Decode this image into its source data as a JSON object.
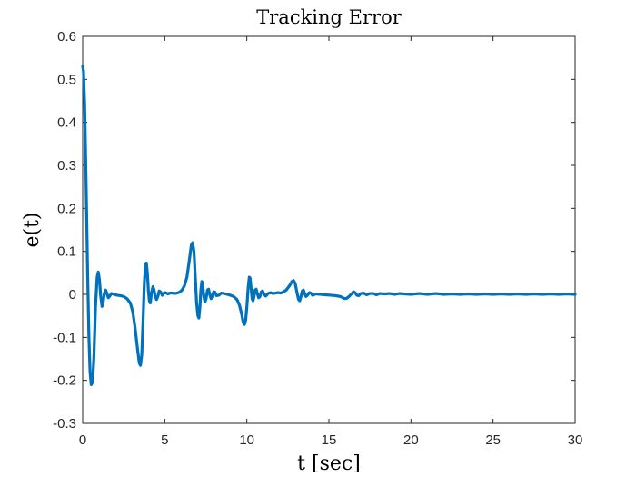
{
  "chart_data": {
    "type": "line",
    "title": "Tracking Error",
    "xlabel": "t [sec]",
    "ylabel": "e(t)",
    "xlim": [
      0,
      30
    ],
    "ylim": [
      -0.3,
      0.6
    ],
    "x_ticks": [
      0,
      5,
      10,
      15,
      20,
      25,
      30
    ],
    "x_tick_labels": [
      "0",
      "5",
      "10",
      "15",
      "20",
      "25",
      "30"
    ],
    "y_ticks": [
      -0.3,
      -0.2,
      -0.1,
      0,
      0.1,
      0.2,
      0.3,
      0.4,
      0.5,
      0.6
    ],
    "y_tick_labels": [
      "-0.3",
      "-0.2",
      "-0.1",
      "0",
      "0.1",
      "0.2",
      "0.3",
      "0.4",
      "0.5",
      "0.6"
    ],
    "grid": false,
    "series": [
      {
        "color": "#0072BD",
        "points": [
          [
            0.0,
            0.53
          ],
          [
            0.05,
            0.52
          ],
          [
            0.12,
            0.44
          ],
          [
            0.2,
            0.28
          ],
          [
            0.3,
            0.05
          ],
          [
            0.38,
            -0.1
          ],
          [
            0.45,
            -0.18
          ],
          [
            0.52,
            -0.21
          ],
          [
            0.6,
            -0.205
          ],
          [
            0.68,
            -0.15
          ],
          [
            0.78,
            -0.03
          ],
          [
            0.88,
            0.04
          ],
          [
            0.95,
            0.052
          ],
          [
            1.02,
            0.035
          ],
          [
            1.1,
            -0.005
          ],
          [
            1.18,
            -0.028
          ],
          [
            1.25,
            -0.018
          ],
          [
            1.32,
            0.003
          ],
          [
            1.4,
            0.01
          ],
          [
            1.48,
            0.002
          ],
          [
            1.56,
            -0.008
          ],
          [
            1.65,
            -0.004
          ],
          [
            1.75,
            0.002
          ],
          [
            1.9,
            0.0
          ],
          [
            2.1,
            -0.002
          ],
          [
            2.3,
            -0.003
          ],
          [
            2.5,
            -0.005
          ],
          [
            2.7,
            -0.01
          ],
          [
            2.9,
            -0.02
          ],
          [
            3.05,
            -0.04
          ],
          [
            3.2,
            -0.08
          ],
          [
            3.35,
            -0.13
          ],
          [
            3.45,
            -0.16
          ],
          [
            3.52,
            -0.165
          ],
          [
            3.6,
            -0.14
          ],
          [
            3.68,
            -0.06
          ],
          [
            3.76,
            0.03
          ],
          [
            3.83,
            0.07
          ],
          [
            3.88,
            0.073
          ],
          [
            3.94,
            0.05
          ],
          [
            4.0,
            0.01
          ],
          [
            4.06,
            -0.015
          ],
          [
            4.12,
            -0.02
          ],
          [
            4.2,
            0.005
          ],
          [
            4.28,
            0.018
          ],
          [
            4.35,
            0.01
          ],
          [
            4.42,
            -0.005
          ],
          [
            4.5,
            -0.012
          ],
          [
            4.58,
            -0.005
          ],
          [
            4.66,
            0.008
          ],
          [
            4.74,
            0.006
          ],
          [
            4.85,
            -0.002
          ],
          [
            4.95,
            0.003
          ],
          [
            5.05,
            0.004
          ],
          [
            5.2,
            0.001
          ],
          [
            5.3,
            0.003
          ],
          [
            5.45,
            0.003
          ],
          [
            5.6,
            0.002
          ],
          [
            5.75,
            0.003
          ],
          [
            5.9,
            0.005
          ],
          [
            6.05,
            0.01
          ],
          [
            6.2,
            0.02
          ],
          [
            6.35,
            0.04
          ],
          [
            6.5,
            0.08
          ],
          [
            6.62,
            0.115
          ],
          [
            6.7,
            0.12
          ],
          [
            6.78,
            0.1
          ],
          [
            6.86,
            0.04
          ],
          [
            6.94,
            -0.02
          ],
          [
            7.02,
            -0.05
          ],
          [
            7.08,
            -0.055
          ],
          [
            7.14,
            -0.03
          ],
          [
            7.2,
            0.01
          ],
          [
            7.26,
            0.03
          ],
          [
            7.32,
            0.02
          ],
          [
            7.38,
            -0.005
          ],
          [
            7.45,
            -0.018
          ],
          [
            7.52,
            -0.01
          ],
          [
            7.6,
            0.01
          ],
          [
            7.67,
            0.012
          ],
          [
            7.74,
            0.0
          ],
          [
            7.82,
            -0.01
          ],
          [
            7.9,
            -0.004
          ],
          [
            7.98,
            0.006
          ],
          [
            8.06,
            0.005
          ],
          [
            8.15,
            -0.003
          ],
          [
            8.3,
            -0.002
          ],
          [
            8.45,
            0.003
          ],
          [
            8.6,
            0.002
          ],
          [
            8.8,
            0.0
          ],
          [
            9.0,
            -0.002
          ],
          [
            9.2,
            -0.005
          ],
          [
            9.4,
            -0.012
          ],
          [
            9.55,
            -0.025
          ],
          [
            9.68,
            -0.045
          ],
          [
            9.78,
            -0.065
          ],
          [
            9.86,
            -0.07
          ],
          [
            9.93,
            -0.06
          ],
          [
            10.0,
            -0.03
          ],
          [
            10.08,
            0.015
          ],
          [
            10.15,
            0.04
          ],
          [
            10.2,
            0.038
          ],
          [
            10.26,
            0.015
          ],
          [
            10.32,
            -0.01
          ],
          [
            10.38,
            -0.015
          ],
          [
            10.44,
            -0.005
          ],
          [
            10.5,
            0.01
          ],
          [
            10.57,
            0.012
          ],
          [
            10.64,
            0.002
          ],
          [
            10.72,
            -0.008
          ],
          [
            10.8,
            -0.005
          ],
          [
            10.88,
            0.006
          ],
          [
            10.96,
            0.008
          ],
          [
            11.05,
            0.0
          ],
          [
            11.15,
            -0.004
          ],
          [
            11.3,
            0.002
          ],
          [
            11.45,
            0.004
          ],
          [
            11.6,
            0.002
          ],
          [
            11.75,
            0.003
          ],
          [
            11.9,
            0.004
          ],
          [
            12.05,
            0.003
          ],
          [
            12.2,
            0.005
          ],
          [
            12.4,
            0.01
          ],
          [
            12.6,
            0.02
          ],
          [
            12.75,
            0.03
          ],
          [
            12.85,
            0.032
          ],
          [
            12.95,
            0.025
          ],
          [
            13.05,
            0.005
          ],
          [
            13.15,
            -0.012
          ],
          [
            13.22,
            -0.015
          ],
          [
            13.3,
            -0.005
          ],
          [
            13.38,
            0.008
          ],
          [
            13.45,
            0.01
          ],
          [
            13.52,
            0.002
          ],
          [
            13.6,
            -0.005
          ],
          [
            13.7,
            -0.002
          ],
          [
            13.8,
            0.004
          ],
          [
            13.9,
            0.003
          ],
          [
            14.0,
            -0.002
          ],
          [
            14.2,
            0.001
          ],
          [
            14.5,
            0.0
          ],
          [
            14.8,
            -0.001
          ],
          [
            15.1,
            -0.002
          ],
          [
            15.4,
            -0.003
          ],
          [
            15.7,
            -0.005
          ],
          [
            15.95,
            -0.01
          ],
          [
            16.1,
            -0.009
          ],
          [
            16.25,
            -0.004
          ],
          [
            16.4,
            0.002
          ],
          [
            16.5,
            0.006
          ],
          [
            16.6,
            0.004
          ],
          [
            16.7,
            -0.002
          ],
          [
            16.82,
            -0.003
          ],
          [
            16.95,
            0.002
          ],
          [
            17.1,
            0.003
          ],
          [
            17.3,
            -0.001
          ],
          [
            17.5,
            0.002
          ],
          [
            17.7,
            0.002
          ],
          [
            17.9,
            -0.001
          ],
          [
            18.1,
            0.002
          ],
          [
            18.4,
            0.001
          ],
          [
            18.7,
            0.002
          ],
          [
            19.0,
            0.0
          ],
          [
            19.3,
            0.002
          ],
          [
            19.6,
            0.001
          ],
          [
            20.0,
            0.0
          ],
          [
            20.5,
            0.002
          ],
          [
            21.0,
            0.0
          ],
          [
            21.5,
            0.002
          ],
          [
            22.0,
            0.0
          ],
          [
            22.5,
            0.001
          ],
          [
            23.0,
            0.0
          ],
          [
            23.5,
            0.001
          ],
          [
            24.0,
            0.0
          ],
          [
            24.5,
            0.001
          ],
          [
            25.0,
            0.0
          ],
          [
            25.5,
            0.001
          ],
          [
            26.0,
            0.0
          ],
          [
            26.5,
            0.001
          ],
          [
            27.0,
            0.0
          ],
          [
            27.5,
            0.001
          ],
          [
            28.0,
            0.0
          ],
          [
            28.5,
            0.001
          ],
          [
            29.0,
            0.0
          ],
          [
            29.5,
            0.001
          ],
          [
            30.0,
            0.0
          ]
        ]
      }
    ]
  }
}
